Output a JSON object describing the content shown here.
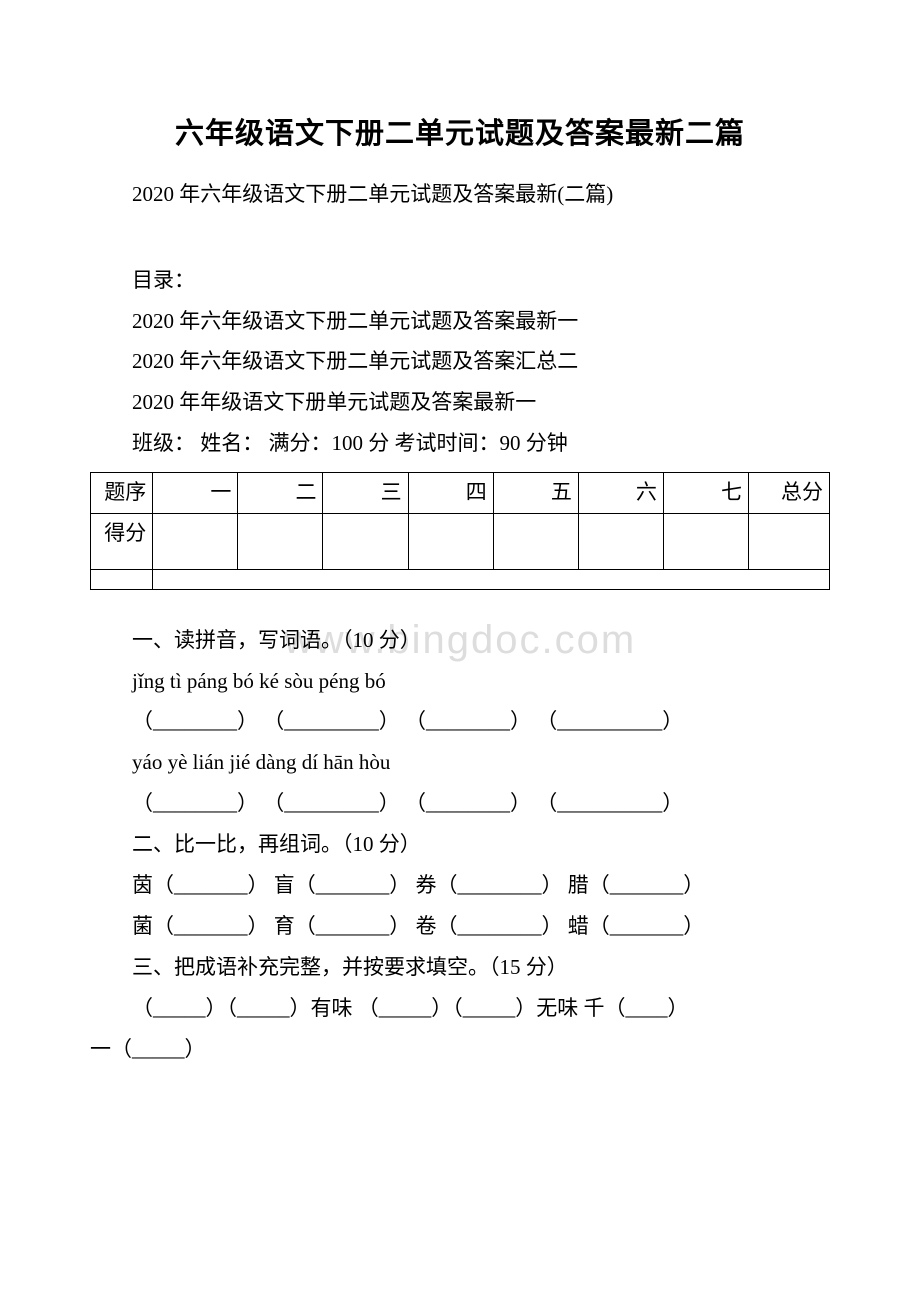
{
  "title": "六年级语文下册二单元试题及答案最新二篇",
  "subtitle": "2020 年六年级语文下册二单元试题及答案最新(二篇)",
  "toc_label": "目录：",
  "toc": [
    "2020 年六年级语文下册二单元试题及答案最新一",
    "2020 年六年级语文下册二单元试题及答案汇总二",
    "2020 年年级语文下册单元试题及答案最新一"
  ],
  "exam_info": "班级：  姓名：  满分：100 分 考试时间：90 分钟",
  "table": {
    "row1_first": "题序",
    "row1_cells": [
      "一",
      "二",
      "三",
      "四",
      "五",
      "六",
      "七"
    ],
    "row1_last": "总分",
    "row2_first": "得分"
  },
  "watermark": "www.bingdoc.com",
  "sections": {
    "q1_title": "一、读拼音，写词语。（10 分）",
    "q1_pinyin1": " jǐng tì   páng bó   ké sòu   péng bó",
    "q1_blanks1": "（________）  （_________）  （________）  （__________）",
    "q1_pinyin2": " yáo yè   lián jié   dàng dí   hān hòu",
    "q1_blanks2": "（________）  （_________）  （________）  （__________）",
    "q2_title": "二、比一比，再组词。（10 分）",
    "q2_line1": "茵（_______） 盲（_______） 券（________） 腊（_______）",
    "q2_line2": "菌（_______） 育（_______） 卷（________） 蜡（_______）",
    "q3_title": "三、把成语补充完整，并按要求填空。（15 分）",
    "q3_line1": "（_____）（_____）有味 （_____）（_____）无味  千（____）",
    "q3_line2": "一（_____）"
  },
  "style": {
    "background_color": "#ffffff",
    "text_color": "#000000",
    "title_fontsize": 29,
    "body_fontsize": 21,
    "watermark_color": "#dddddd",
    "watermark_fontsize": 40,
    "border_color": "#000000"
  }
}
